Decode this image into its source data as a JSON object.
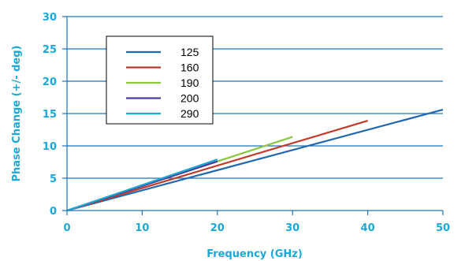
{
  "chart_data": {
    "type": "line",
    "xlabel": "Frequency (GHz)",
    "ylabel": "Phase Change (+/- deg)",
    "xlim": [
      0,
      50
    ],
    "ylim": [
      0,
      30
    ],
    "x_ticks": [
      "0",
      "10",
      "20",
      "30",
      "40",
      "50"
    ],
    "y_ticks": [
      "0",
      "5",
      "10",
      "15",
      "20",
      "25",
      "30"
    ],
    "grid": "horizontal",
    "legend_position": "top-left",
    "series": [
      {
        "name": "125",
        "color": "#2268b0",
        "x": [
          0,
          50
        ],
        "y": [
          0,
          15.6
        ]
      },
      {
        "name": "160",
        "color": "#c0392b",
        "x": [
          0,
          40
        ],
        "y": [
          0,
          13.9
        ]
      },
      {
        "name": "190",
        "color": "#8dc63f",
        "x": [
          0,
          30
        ],
        "y": [
          0,
          11.4
        ]
      },
      {
        "name": "200",
        "color": "#4b3b9a",
        "x": [
          0,
          20
        ],
        "y": [
          0,
          7.6
        ]
      },
      {
        "name": "290",
        "color": "#1ba8d6",
        "x": [
          0,
          20
        ],
        "y": [
          0,
          7.9
        ]
      }
    ],
    "colors": {
      "axis_text": "#1ba8d6",
      "grid": "#1d73b8"
    }
  }
}
